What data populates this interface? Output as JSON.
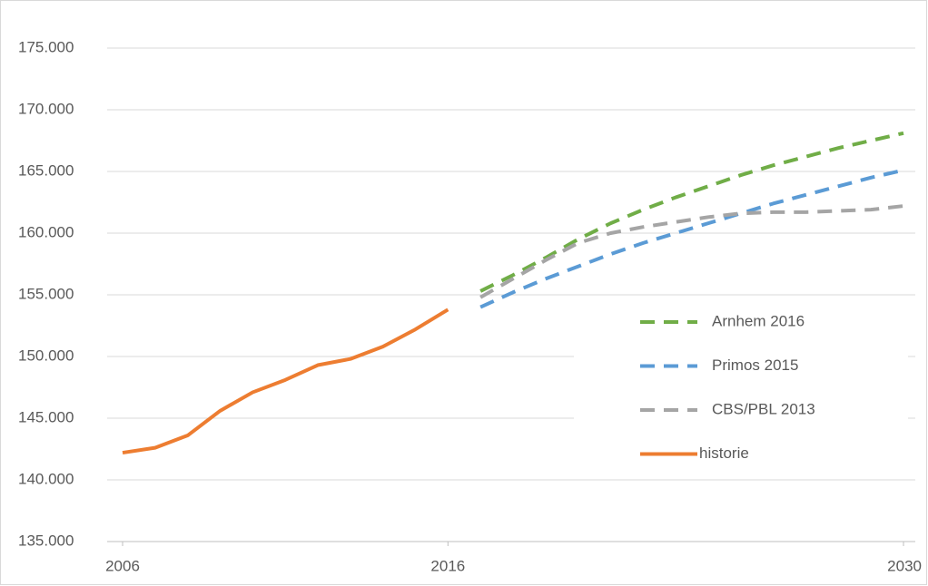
{
  "chart_data": {
    "type": "line",
    "xlim": [
      2006,
      2030
    ],
    "xticks": [
      2006,
      2016,
      2030
    ],
    "ylim": [
      135000,
      175000
    ],
    "yticks": [
      {
        "value": 135000,
        "label": "135.000"
      },
      {
        "value": 140000,
        "label": "140.000"
      },
      {
        "value": 145000,
        "label": "145.000"
      },
      {
        "value": 150000,
        "label": "150.000"
      },
      {
        "value": 155000,
        "label": "155.000"
      },
      {
        "value": 160000,
        "label": "160.000"
      },
      {
        "value": 165000,
        "label": "165.000"
      },
      {
        "value": 170000,
        "label": "170.000"
      },
      {
        "value": 175000,
        "label": "175.000"
      }
    ],
    "grid": true,
    "legend": "right",
    "series": [
      {
        "name": "Arnhem 2016",
        "color": "#70ad47",
        "dashed": true,
        "x": [
          2017,
          2018,
          2019,
          2020,
          2021,
          2022,
          2023,
          2024,
          2025,
          2026,
          2027,
          2028,
          2029,
          2030
        ],
        "values": [
          155300,
          156600,
          158000,
          159500,
          160800,
          161900,
          162900,
          163800,
          164700,
          165500,
          166200,
          166900,
          167500,
          168100
        ]
      },
      {
        "name": "Primos 2015",
        "color": "#5b9bd5",
        "dashed": true,
        "x": [
          2017,
          2018,
          2019,
          2020,
          2021,
          2022,
          2023,
          2024,
          2025,
          2026,
          2027,
          2028,
          2029,
          2030
        ],
        "values": [
          154000,
          155200,
          156300,
          157300,
          158300,
          159200,
          160000,
          160800,
          161600,
          162400,
          163100,
          163800,
          164500,
          165100
        ]
      },
      {
        "name": "CBS/PBL 2013",
        "color": "#a5a5a5",
        "dashed": true,
        "x": [
          2017,
          2018,
          2019,
          2020,
          2021,
          2022,
          2023,
          2024,
          2025,
          2026,
          2027,
          2028,
          2029,
          2030
        ],
        "values": [
          154800,
          156300,
          157800,
          159200,
          160000,
          160500,
          160900,
          161300,
          161600,
          161700,
          161700,
          161800,
          161900,
          162200
        ]
      },
      {
        "name": "historie",
        "color": "#ed7d31",
        "dashed": false,
        "x": [
          2006,
          2007,
          2008,
          2009,
          2010,
          2011,
          2012,
          2013,
          2014,
          2015,
          2016
        ],
        "values": [
          142200,
          142600,
          143600,
          145600,
          147100,
          148100,
          149300,
          149800,
          150800,
          152200,
          153800
        ]
      }
    ]
  }
}
